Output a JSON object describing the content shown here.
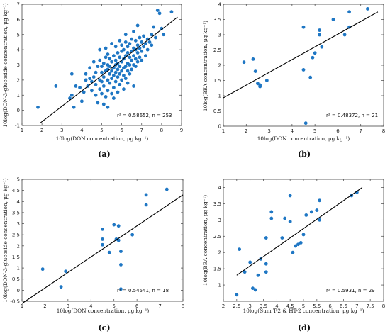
{
  "chart_data": [
    {
      "type": "scatter",
      "panel_label": "(a)",
      "xlabel": "10log(DON concentration, μg kg⁻¹)",
      "ylabel": "10log(DON-3-glucoside concentration, μg kg⁻¹)",
      "annotation": "r² = 0.58652, n = 253",
      "xlim": [
        1,
        9
      ],
      "ylim": [
        -1,
        7
      ],
      "xticks": [
        1,
        2,
        3,
        4,
        5,
        6,
        7,
        8,
        9
      ],
      "yticks": [
        -1,
        0,
        1,
        2,
        3,
        4,
        5,
        6,
        7
      ],
      "fit_line": {
        "x": [
          1.9,
          8.8
        ],
        "y": [
          -0.85,
          6.15
        ]
      },
      "marker_color": "#1f77c4",
      "points": [
        [
          1.8,
          0.2
        ],
        [
          2.7,
          1.6
        ],
        [
          3.4,
          0.8
        ],
        [
          3.5,
          1.0
        ],
        [
          3.6,
          0.2
        ],
        [
          3.7,
          1.6
        ],
        [
          3.5,
          2.4
        ],
        [
          3.9,
          1.5
        ],
        [
          4.0,
          0.6
        ],
        [
          4.1,
          1.2
        ],
        [
          4.2,
          2.0
        ],
        [
          4.2,
          2.4
        ],
        [
          4.3,
          1.6
        ],
        [
          4.4,
          2.1
        ],
        [
          4.4,
          2.8
        ],
        [
          4.5,
          1.3
        ],
        [
          4.5,
          1.9
        ],
        [
          4.6,
          2.2
        ],
        [
          4.6,
          3.2
        ],
        [
          4.7,
          1.0
        ],
        [
          4.7,
          1.7
        ],
        [
          4.7,
          2.5
        ],
        [
          4.8,
          0.5
        ],
        [
          4.8,
          2.9
        ],
        [
          4.9,
          1.4
        ],
        [
          4.9,
          2.0
        ],
        [
          4.9,
          3.3
        ],
        [
          4.9,
          4.0
        ],
        [
          5.0,
          1.1
        ],
        [
          5.0,
          1.9
        ],
        [
          5.0,
          2.5
        ],
        [
          5.0,
          2.9
        ],
        [
          5.1,
          0.4
        ],
        [
          5.1,
          1.6
        ],
        [
          5.1,
          2.2
        ],
        [
          5.1,
          3.1
        ],
        [
          5.2,
          0.9
        ],
        [
          5.2,
          2.6
        ],
        [
          5.2,
          3.5
        ],
        [
          5.2,
          4.1
        ],
        [
          5.3,
          0.2
        ],
        [
          5.3,
          1.3
        ],
        [
          5.3,
          2.0
        ],
        [
          5.3,
          2.7
        ],
        [
          5.3,
          3.0
        ],
        [
          5.3,
          3.7
        ],
        [
          5.4,
          1.8
        ],
        [
          5.4,
          2.4
        ],
        [
          5.4,
          2.9
        ],
        [
          5.4,
          3.4
        ],
        [
          5.5,
          1.1
        ],
        [
          5.5,
          2.1
        ],
        [
          5.5,
          2.6
        ],
        [
          5.5,
          3.2
        ],
        [
          5.5,
          4.4
        ],
        [
          5.6,
          0.8
        ],
        [
          5.6,
          1.5
        ],
        [
          5.6,
          2.3
        ],
        [
          5.6,
          2.8
        ],
        [
          5.6,
          3.6
        ],
        [
          5.7,
          1.9
        ],
        [
          5.7,
          2.5
        ],
        [
          5.7,
          3.0
        ],
        [
          5.7,
          3.3
        ],
        [
          5.7,
          4.2
        ],
        [
          5.8,
          1.2
        ],
        [
          5.8,
          2.2
        ],
        [
          5.8,
          2.7
        ],
        [
          5.8,
          3.1
        ],
        [
          5.8,
          3.8
        ],
        [
          5.9,
          1.7
        ],
        [
          5.9,
          2.4
        ],
        [
          5.9,
          2.9
        ],
        [
          5.9,
          3.5
        ],
        [
          5.9,
          4.6
        ],
        [
          6.0,
          2.0
        ],
        [
          6.0,
          2.6
        ],
        [
          6.0,
          3.2
        ],
        [
          6.0,
          3.9
        ],
        [
          6.0,
          4.3
        ],
        [
          6.1,
          1.4
        ],
        [
          6.1,
          2.3
        ],
        [
          6.1,
          2.8
        ],
        [
          6.1,
          3.4
        ],
        [
          6.1,
          4.0
        ],
        [
          6.2,
          2.1
        ],
        [
          6.2,
          2.9
        ],
        [
          6.2,
          3.6
        ],
        [
          6.2,
          4.5
        ],
        [
          6.2,
          5.0
        ],
        [
          6.3,
          1.8
        ],
        [
          6.3,
          2.6
        ],
        [
          6.3,
          3.1
        ],
        [
          6.3,
          3.8
        ],
        [
          6.3,
          4.2
        ],
        [
          6.4,
          2.4
        ],
        [
          6.4,
          3.0
        ],
        [
          6.4,
          3.5
        ],
        [
          6.4,
          4.4
        ],
        [
          6.5,
          2.7
        ],
        [
          6.5,
          3.3
        ],
        [
          6.5,
          3.9
        ],
        [
          6.5,
          4.7
        ],
        [
          6.6,
          1.6
        ],
        [
          6.6,
          3.0
        ],
        [
          6.6,
          3.6
        ],
        [
          6.6,
          4.1
        ],
        [
          6.6,
          5.2
        ],
        [
          6.7,
          2.9
        ],
        [
          6.7,
          3.4
        ],
        [
          6.7,
          4.0
        ],
        [
          6.7,
          4.6
        ],
        [
          6.8,
          3.2
        ],
        [
          6.8,
          3.8
        ],
        [
          6.8,
          4.3
        ],
        [
          6.8,
          5.6
        ],
        [
          6.9,
          3.5
        ],
        [
          6.9,
          4.1
        ],
        [
          6.9,
          4.8
        ],
        [
          7.0,
          3.3
        ],
        [
          7.0,
          3.9
        ],
        [
          7.0,
          4.5
        ],
        [
          7.1,
          4.2
        ],
        [
          7.1,
          4.9
        ],
        [
          7.2,
          3.6
        ],
        [
          7.2,
          4.4
        ],
        [
          7.3,
          4.0
        ],
        [
          7.3,
          4.7
        ],
        [
          7.4,
          4.5
        ],
        [
          7.5,
          4.3
        ],
        [
          7.5,
          5.0
        ],
        [
          7.6,
          5.5
        ],
        [
          7.7,
          4.8
        ],
        [
          7.8,
          6.6
        ],
        [
          7.9,
          6.4
        ],
        [
          8.0,
          5.4
        ],
        [
          8.1,
          5.0
        ],
        [
          8.5,
          6.5
        ]
      ]
    },
    {
      "type": "scatter",
      "panel_label": "(b)",
      "xlabel": "10log(DON concentration, μg kg⁻¹)",
      "ylabel": "10log(BEA concentration, μg kg⁻¹)",
      "annotation": "r² = 0.48372, n = 21",
      "xlim": [
        1,
        8
      ],
      "ylim": [
        0,
        4
      ],
      "xticks": [
        1,
        2,
        3,
        4,
        5,
        6,
        7,
        8
      ],
      "yticks": [
        0,
        0.5,
        1,
        1.5,
        2,
        2.5,
        3,
        3.5,
        4
      ],
      "fit_line": {
        "x": [
          1,
          7.75
        ],
        "y": [
          0.93,
          3.75
        ]
      },
      "marker_color": "#1f77c4",
      "points": [
        [
          1.9,
          2.1
        ],
        [
          2.3,
          2.2
        ],
        [
          2.4,
          1.8
        ],
        [
          2.5,
          1.4
        ],
        [
          2.6,
          1.3
        ],
        [
          2.6,
          1.35
        ],
        [
          2.9,
          1.5
        ],
        [
          4.5,
          3.25
        ],
        [
          4.5,
          1.85
        ],
        [
          4.6,
          0.1
        ],
        [
          4.8,
          1.6
        ],
        [
          4.9,
          2.25
        ],
        [
          5.0,
          2.4
        ],
        [
          5.2,
          3.15
        ],
        [
          5.2,
          3.0
        ],
        [
          5.3,
          2.6
        ],
        [
          5.8,
          3.5
        ],
        [
          6.3,
          3.0
        ],
        [
          6.5,
          3.75
        ],
        [
          6.5,
          3.25
        ],
        [
          7.3,
          3.85
        ]
      ]
    },
    {
      "type": "scatter",
      "panel_label": "(c)",
      "xlabel": "10log(DON concentration, μg kg⁻¹)",
      "ylabel": "10log(DON-3-glucoside concentration, μg kg⁻¹)",
      "annotation": "r² = 0.54541, n = 18",
      "xlim": [
        1,
        8
      ],
      "ylim": [
        -0.5,
        5
      ],
      "xticks": [
        1,
        2,
        3,
        4,
        5,
        6,
        7,
        8
      ],
      "yticks": [
        -0.5,
        0,
        0.5,
        1,
        1.5,
        2,
        2.5,
        3,
        3.5,
        4,
        4.5,
        5
      ],
      "fit_line": {
        "x": [
          1,
          8
        ],
        "y": [
          -0.6,
          4.3
        ]
      },
      "marker_color": "#1f77c4",
      "points": [
        [
          1.9,
          0.95
        ],
        [
          2.7,
          0.15
        ],
        [
          2.9,
          0.85
        ],
        [
          4.5,
          2.3
        ],
        [
          4.5,
          2.05
        ],
        [
          4.5,
          2.75
        ],
        [
          4.8,
          1.7
        ],
        [
          5.0,
          2.95
        ],
        [
          5.1,
          2.3
        ],
        [
          5.2,
          2.25
        ],
        [
          5.2,
          2.9
        ],
        [
          5.3,
          1.15
        ],
        [
          5.3,
          1.75
        ],
        [
          5.3,
          0.05
        ],
        [
          5.8,
          2.5
        ],
        [
          6.4,
          4.3
        ],
        [
          6.4,
          3.85
        ],
        [
          7.3,
          4.55
        ]
      ]
    },
    {
      "type": "scatter",
      "panel_label": "(d)",
      "xlabel": "10log(Sum T-2 & HT-2 concentration, μg kg⁻¹)",
      "ylabel": "10log(BEA concentration, μg kg⁻¹)",
      "annotation": "r² = 0.5931, n = 29",
      "xlim": [
        2,
        8
      ],
      "ylim": [
        0.5,
        4.25
      ],
      "xticks": [
        2,
        2.5,
        3,
        3.5,
        4,
        4.5,
        5,
        5.5,
        6,
        6.5,
        7,
        7.5,
        8
      ],
      "yticks": [
        1,
        1.5,
        2,
        2.5,
        3,
        3.5,
        4
      ],
      "fit_line": {
        "x": [
          2.5,
          7.2
        ],
        "y": [
          1.3,
          4.0
        ]
      },
      "marker_color": "#1f77c4",
      "points": [
        [
          2.5,
          0.7
        ],
        [
          2.6,
          2.1
        ],
        [
          2.8,
          1.4
        ],
        [
          3.0,
          1.7
        ],
        [
          3.1,
          0.9
        ],
        [
          3.2,
          0.85
        ],
        [
          3.3,
          1.3
        ],
        [
          3.4,
          1.8
        ],
        [
          3.6,
          1.65
        ],
        [
          3.6,
          1.4
        ],
        [
          3.6,
          2.45
        ],
        [
          3.8,
          3.25
        ],
        [
          3.8,
          3.05
        ],
        [
          4.2,
          2.45
        ],
        [
          4.3,
          3.05
        ],
        [
          4.5,
          3.75
        ],
        [
          4.5,
          2.95
        ],
        [
          4.6,
          2.0
        ],
        [
          4.7,
          2.2
        ],
        [
          4.8,
          2.25
        ],
        [
          4.9,
          2.3
        ],
        [
          5.0,
          2.55
        ],
        [
          5.1,
          3.15
        ],
        [
          5.3,
          3.25
        ],
        [
          5.5,
          3.3
        ],
        [
          5.6,
          3.6
        ],
        [
          5.6,
          3.0
        ],
        [
          6.8,
          3.75
        ],
        [
          7.0,
          3.85
        ]
      ]
    }
  ]
}
